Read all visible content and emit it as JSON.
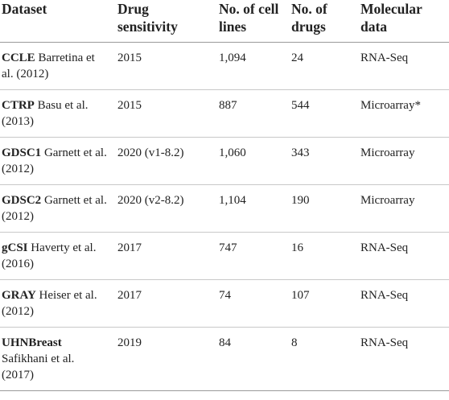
{
  "headers": {
    "dataset": "Dataset",
    "drug_sensitivity": "Drug sensitivity",
    "cell_lines": "No. of cell lines",
    "drugs": "No. of drugs",
    "molecular": "Molecular data"
  },
  "rows": [
    {
      "name": "CCLE",
      "citation": " Barretina et al. (2012)",
      "year": "2015",
      "cells": "1,094",
      "drugs": "24",
      "molecular": "RNA-Seq"
    },
    {
      "name": "CTRP",
      "citation": " Basu et al. (2013)",
      "year": "2015",
      "cells": "887",
      "drugs": "544",
      "molecular": "Microarray*"
    },
    {
      "name": "GDSC1",
      "citation": " Garnett et al. (2012)",
      "year": "2020 (v1-8.2)",
      "cells": "1,060",
      "drugs": "343",
      "molecular": "Microarray"
    },
    {
      "name": "GDSC2",
      "citation": " Garnett et al. (2012)",
      "year": "2020 (v2-8.2)",
      "cells": "1,104",
      "drugs": "190",
      "molecular": "Microarray"
    },
    {
      "name": "gCSI",
      "citation": " Haverty et al. (2016)",
      "year": "2017",
      "cells": "747",
      "drugs": "16",
      "molecular": "RNA-Seq"
    },
    {
      "name": "GRAY",
      "citation": " Heiser et al. (2012)",
      "year": "2017",
      "cells": "74",
      "drugs": "107",
      "molecular": "RNA-Seq"
    },
    {
      "name": "UHNBreast",
      "citation": " Safikhani et al. (2017)",
      "year": "2019",
      "cells": "84",
      "drugs": "8",
      "molecular": "RNA-Seq"
    }
  ]
}
